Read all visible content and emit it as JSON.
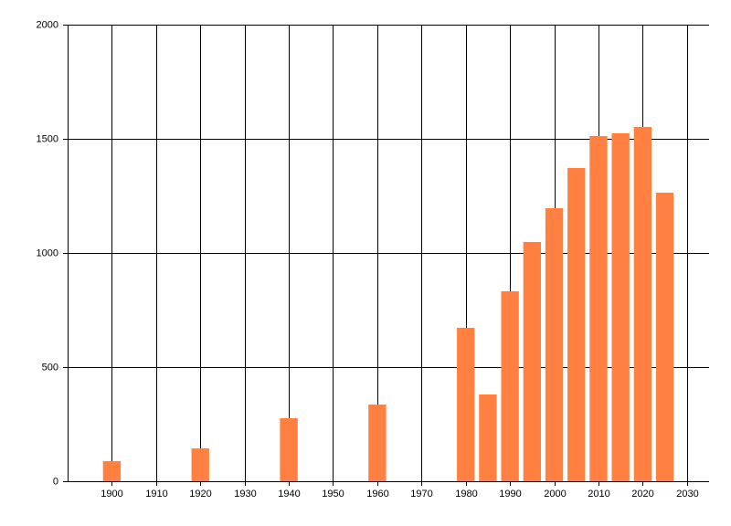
{
  "chart_data": {
    "type": "bar",
    "x": [
      1900,
      1920,
      1940,
      1960,
      1980,
      1985,
      1990,
      1995,
      2000,
      2005,
      2010,
      2015,
      2020,
      2025
    ],
    "values": [
      88,
      144,
      276,
      336,
      672,
      380,
      832,
      1048,
      1196,
      1372,
      1512,
      1524,
      1552,
      1264
    ],
    "color": "#ff8040",
    "xlim": [
      1890,
      2035
    ],
    "xticks": [
      1900,
      1910,
      1920,
      1930,
      1940,
      1950,
      1960,
      1970,
      1980,
      1990,
      2000,
      2010,
      2020,
      2030
    ],
    "ylim": [
      0,
      2000
    ],
    "yticks": [
      0,
      500,
      1000,
      1500,
      2000
    ],
    "bar_width": 4,
    "grid": true
  }
}
